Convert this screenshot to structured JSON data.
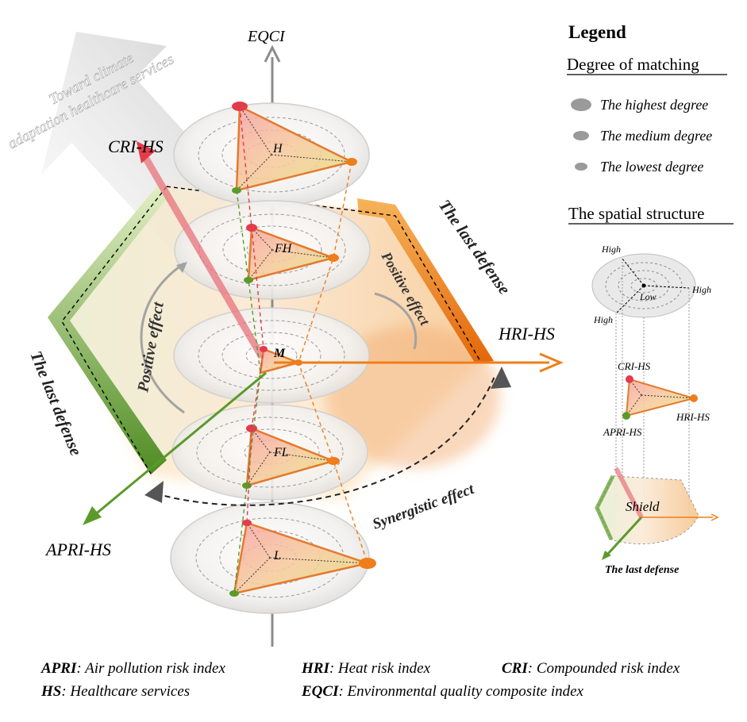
{
  "axes": {
    "vertical": "EQCI",
    "top_left": "CRI-HS",
    "right": "HRI-HS",
    "bottom_left": "APRI-HS"
  },
  "arrow_banner": [
    "Toward climate",
    "adaptation healthcare services"
  ],
  "layers": [
    "H",
    "FH",
    "M",
    "FL",
    "L"
  ],
  "effects": {
    "positive_left": "Positive effect",
    "positive_right": "Positive effect",
    "synergistic": "Synergistic effect",
    "last_defense_right": "The last defense",
    "last_defense_left": "The last defense"
  },
  "legend": {
    "title": "Legend",
    "matching_title": "Degree of matching",
    "matching_items": [
      "The highest degree",
      "The medium degree",
      "The lowest degree"
    ],
    "structure_title": "The spatial structure",
    "structure_high": "High",
    "structure_low": "Low",
    "structure_cri": "CRI-HS",
    "structure_hri": "HRI-HS",
    "structure_apri": "APRI-HS",
    "structure_shield": "Shield",
    "structure_last_defense": "The last defense"
  },
  "definitions": [
    {
      "abbr": "APRI",
      "text": ": Air pollution risk index"
    },
    {
      "abbr": "HRI",
      "text": ": Heat risk index"
    },
    {
      "abbr": "CRI",
      "text": ": Compounded risk index"
    },
    {
      "abbr": "HS",
      "text": ": Healthcare services"
    },
    {
      "abbr": "EQCI",
      "text": ": Environmental quality composite index"
    }
  ],
  "colors": {
    "cri": "#e23b4a",
    "hri": "#ef7d1a",
    "apri": "#5a9a2a",
    "axis": "#8c8c8c"
  }
}
